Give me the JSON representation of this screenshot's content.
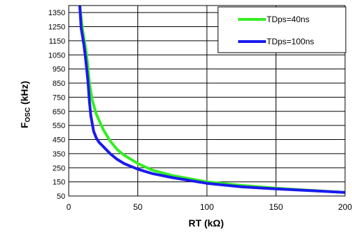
{
  "chart_data": {
    "type": "line",
    "title": "",
    "xlabel": "RT (kΩ)",
    "ylabel": {
      "main": "F",
      "sub": "OSC",
      "unit": " (kHz)"
    },
    "xlim": [
      0,
      200
    ],
    "ylim": [
      50,
      1400
    ],
    "xticks": [
      "0",
      "50",
      "100",
      "150",
      "200"
    ],
    "yticks": [
      "50",
      "150",
      "250",
      "350",
      "450",
      "550",
      "650",
      "750",
      "850",
      "950",
      "1050",
      "1150",
      "1250",
      "1350"
    ],
    "grid": true,
    "legend_position": "top-right",
    "series": [
      {
        "name": "TDps=40ns",
        "color": "#33ee22",
        "x": [
          8,
          9,
          10,
          11,
          12,
          13,
          14,
          15,
          17,
          20,
          25,
          30,
          35,
          40,
          50,
          60,
          75,
          100,
          125,
          150,
          175,
          200
        ],
        "y": [
          1400,
          1310,
          1230,
          1170,
          1110,
          1040,
          950,
          850,
          730,
          630,
          520,
          440,
          380,
          340,
          280,
          235,
          195,
          150,
          125,
          105,
          90,
          75
        ]
      },
      {
        "name": "TDps=100ns",
        "color": "#1a1aee",
        "x": [
          8,
          9,
          10,
          11,
          12,
          13,
          14,
          15,
          16,
          18,
          20,
          22,
          25,
          30,
          35,
          40,
          50,
          60,
          75,
          100,
          125,
          150,
          175,
          200
        ],
        "y": [
          1400,
          1240,
          1180,
          1120,
          1040,
          950,
          850,
          720,
          620,
          510,
          460,
          430,
          400,
          350,
          310,
          280,
          240,
          210,
          180,
          140,
          115,
          100,
          88,
          75
        ]
      }
    ]
  }
}
